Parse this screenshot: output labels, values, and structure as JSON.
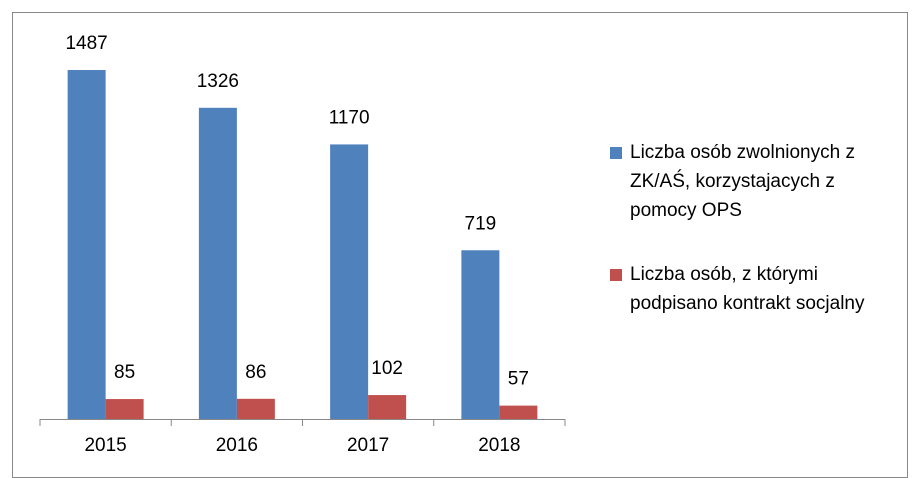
{
  "chart_data": {
    "type": "bar",
    "categories": [
      "2015",
      "2016",
      "2017",
      "2018"
    ],
    "series": [
      {
        "name": "Liczba osób zwolnionych z ZK/AŚ, korzystajacych z pomocy OPS",
        "color": "#4f81bd",
        "values": [
          1487,
          1326,
          1170,
          719
        ]
      },
      {
        "name": "Liczba osób, z którymi podpisano kontrakt socjalny",
        "color": "#c0504d",
        "values": [
          85,
          86,
          102,
          57
        ]
      }
    ],
    "ylim": [
      0,
      1600
    ]
  }
}
